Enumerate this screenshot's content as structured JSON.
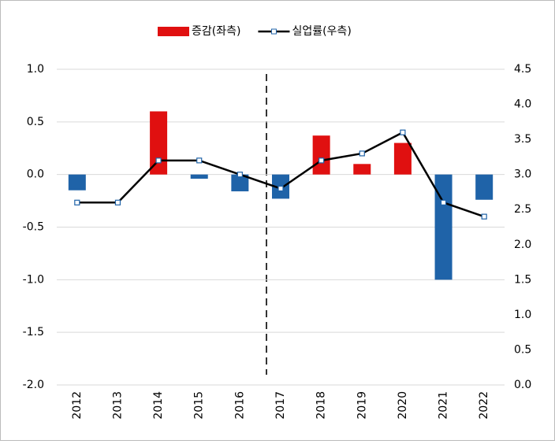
{
  "chart_data": {
    "type": "bar",
    "categories": [
      "2012",
      "2013",
      "2014",
      "2015",
      "2016",
      "2017",
      "2018",
      "2019",
      "2020",
      "2021",
      "2022"
    ],
    "series": [
      {
        "name": "증감(좌측)",
        "type": "bar",
        "positive_color": "#e01010",
        "negative_color": "#1f63a8",
        "values": [
          -0.15,
          0,
          0.6,
          -0.04,
          -0.16,
          -0.23,
          0.37,
          0.1,
          0.3,
          -1.0,
          -0.24
        ]
      },
      {
        "name": "실업률(우측)",
        "type": "line",
        "axis": "y2",
        "color": "#000000",
        "values": [
          2.6,
          2.6,
          3.2,
          3.2,
          3.0,
          2.8,
          3.2,
          3.3,
          3.6,
          2.6,
          2.4
        ]
      }
    ],
    "ylim": [
      -2.0,
      1.0
    ],
    "yticks": [
      {
        "value": -2.0,
        "label": "-2.0"
      },
      -1.5,
      {
        "value": -1.0,
        "label": "-1.0"
      },
      -0.5,
      {
        "value": 0,
        "label": "0.0"
      },
      0.5,
      {
        "value": 1.0,
        "label": "1.0"
      }
    ],
    "y2lim": [
      0,
      4.5
    ],
    "y2ticks": [
      {
        "value": 0,
        "label": "0.0"
      },
      0.5,
      {
        "value": 1.0,
        "label": "1.0"
      },
      1.5,
      {
        "value": 2.0,
        "label": "2.0"
      },
      2.5,
      {
        "value": 3.0,
        "label": "3.0"
      },
      3.5,
      {
        "value": 4.0,
        "label": "4.0"
      },
      4.5
    ],
    "grid": true,
    "legend": "top"
  }
}
